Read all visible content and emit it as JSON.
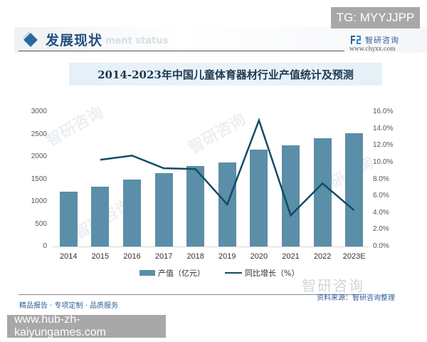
{
  "header": {
    "section_title": "发展现状",
    "section_subtitle": "ment status",
    "tg_badge": "TG: MYYJJPP",
    "brand_name": "智研咨询",
    "brand_url": "www.chyxx.com"
  },
  "chart": {
    "title": "2014-2023年中国儿童体育器材行业产值统计及预测",
    "left_axis_ticks": [
      "3000",
      "2500",
      "2000",
      "1500",
      "1000",
      "500",
      "0"
    ],
    "right_axis_ticks": [
      "16.0%",
      "14.0%",
      "12.0%",
      "10.0%",
      "8.0%",
      "6.0%",
      "4.0%",
      "2.0%",
      "0.0%"
    ],
    "legend": {
      "bar_label": "产值（亿元）",
      "line_label": "同比增长（%）"
    }
  },
  "chart_data": {
    "type": "bar",
    "title": "2014-2023年中国儿童体育器材行业产值统计及预测",
    "categories": [
      "2014",
      "2015",
      "2016",
      "2017",
      "2018",
      "2019",
      "2020",
      "2021",
      "2022",
      "2023E"
    ],
    "series": [
      {
        "name": "产值（亿元）",
        "type": "bar",
        "axis": "left",
        "color": "#5b8ea8",
        "values": [
          1222,
          1338,
          1487,
          1630,
          1798,
          1873,
          2159,
          2249,
          2418,
          2524
        ]
      },
      {
        "name": "同比增长（%）",
        "type": "line",
        "axis": "right",
        "color": "#124b66",
        "values": [
          null,
          10.3,
          10.8,
          9.3,
          9.2,
          5.0,
          15.0,
          3.7,
          7.5,
          4.3
        ]
      }
    ],
    "xlabel": "",
    "ylabel_left": "",
    "ylabel_right": "",
    "ylim_left": [
      0,
      3000
    ],
    "ylim_right": [
      0,
      16
    ],
    "grid": false,
    "legend_position": "bottom"
  },
  "footer": {
    "brand_watermark": "智研咨询",
    "source": "资料来源：智研咨询整理",
    "tagline": "精品报告 · 专项定制 · 品质服务",
    "url_badge": "www.hub-zh-kaiyungames.com"
  }
}
